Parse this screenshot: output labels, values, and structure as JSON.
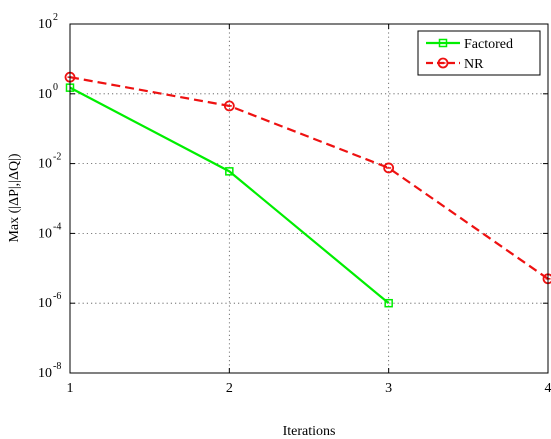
{
  "chart_data": {
    "type": "line",
    "title": "",
    "xlabel": "Iterations",
    "ylabel": "Max (|ΔP|,|ΔQ|)",
    "x": [
      1,
      2,
      3,
      4
    ],
    "xlim": [
      1,
      4
    ],
    "ylim": [
      1e-08,
      100
    ],
    "yscale": "log",
    "xticks": [
      "1",
      "2",
      "3",
      "4"
    ],
    "yticks": [
      {
        "base": "10",
        "exp": "2",
        "value": 100
      },
      {
        "base": "10",
        "exp": "0",
        "value": 1
      },
      {
        "base": "10",
        "exp": "-2",
        "value": 0.01
      },
      {
        "base": "10",
        "exp": "-4",
        "value": 0.0001
      },
      {
        "base": "10",
        "exp": "-6",
        "value": 1e-06
      },
      {
        "base": "10",
        "exp": "-8",
        "value": 1e-08
      }
    ],
    "grid": true,
    "legend_position": "top-right",
    "series": [
      {
        "name": "Factored",
        "x": [
          1,
          2,
          3
        ],
        "values": [
          1.5,
          0.006,
          1e-06
        ],
        "color": "#00ee00",
        "line_style": "solid",
        "marker": "square"
      },
      {
        "name": "NR",
        "x": [
          1,
          2,
          3,
          4
        ],
        "values": [
          3,
          0.45,
          0.0075,
          5e-06
        ],
        "color": "#ee1111",
        "line_style": "dashed",
        "marker": "circle"
      }
    ]
  }
}
